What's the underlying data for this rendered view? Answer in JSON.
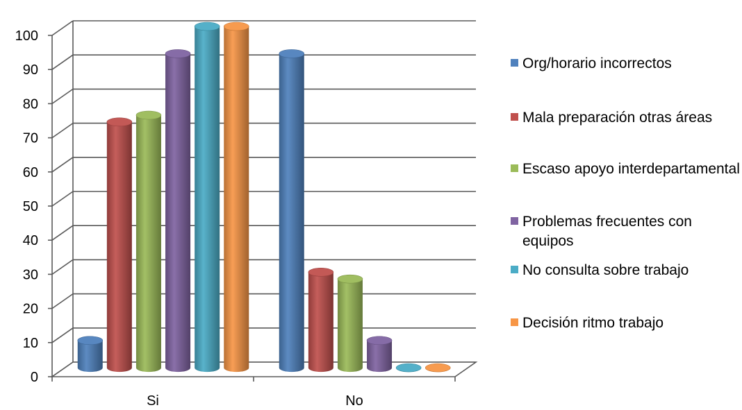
{
  "chart_data": {
    "type": "bar",
    "categories": [
      "Si",
      "No"
    ],
    "series": [
      {
        "name": "Org/horario incorrectos",
        "values": [
          8,
          92
        ],
        "color": "#4F81BD"
      },
      {
        "name": "Mala preparación otras áreas",
        "values": [
          72,
          28
        ],
        "color": "#C0504D"
      },
      {
        "name": "Escaso apoyo interdepartamental",
        "values": [
          74,
          26
        ],
        "color": "#9BBB59"
      },
      {
        "name": "Problemas frecuentes con equipos",
        "values": [
          92,
          8
        ],
        "color": "#8064A2"
      },
      {
        "name": "No consulta sobre trabajo",
        "values": [
          100,
          0
        ],
        "color": "#4BACC6"
      },
      {
        "name": "Decisión ritmo trabajo",
        "values": [
          100,
          0
        ],
        "color": "#F79646"
      }
    ],
    "yticks": [
      "0",
      "10",
      "20",
      "30",
      "40",
      "50",
      "60",
      "70",
      "80",
      "90",
      "100"
    ],
    "ylim": [
      0,
      100
    ],
    "grid": true,
    "legend_position": "right",
    "style": "3d-cylinder"
  }
}
